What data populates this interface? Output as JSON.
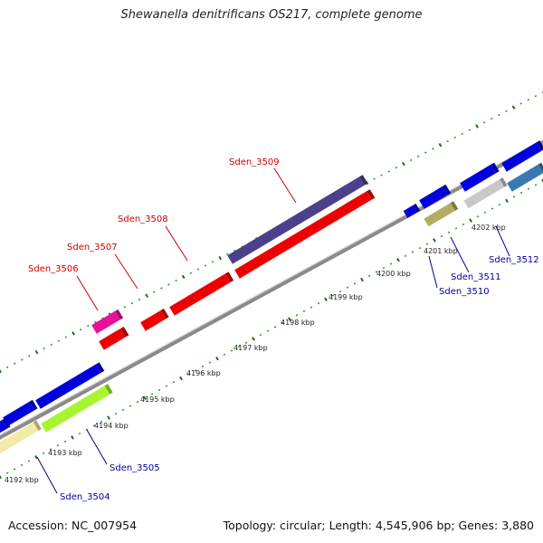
{
  "title": "Shewanella denitrificans OS217, complete genome",
  "footer": {
    "accession": "Accession: NC_007954",
    "summary": "Topology: circular; Length: 4,545,906 bp; Genes: 3,880"
  },
  "colors": {
    "backbone": "#8a8a8a",
    "tick_dots": "#2f9a2f",
    "tick_major": "#1d6e1d",
    "red_label": "#cc0000",
    "blue_label": "#000099"
  },
  "scale_ticks": [
    "4192 kbp",
    "4193 kbp",
    "4194 kbp",
    "4195 kbp",
    "4196 kbp",
    "4197 kbp",
    "4198 kbp",
    "4199 kbp",
    "4200 kbp",
    "4201 kbp",
    "4202 kbp"
  ],
  "genes": [
    {
      "id": "g0a",
      "strand": "top",
      "color": "#0000dd",
      "label": ""
    },
    {
      "id": "g0b",
      "strand": "top",
      "color": "#0000dd",
      "label": ""
    },
    {
      "id": "g0c",
      "strand": "top",
      "color": "#0000dd",
      "label": ""
    },
    {
      "id": "g3504",
      "strand": "bottom",
      "color": "#f2eba8",
      "label": "Sden_3504"
    },
    {
      "id": "g3505",
      "strand": "bottom",
      "color": "#a6f530",
      "label": "Sden_3505"
    },
    {
      "id": "g3506",
      "strand": "out",
      "color": "#e8119a",
      "label": "Sden_3506"
    },
    {
      "id": "g3506b",
      "strand": "bottom",
      "color": "#ee0000",
      "label": ""
    },
    {
      "id": "g3507",
      "strand": "bottom",
      "color": "#ee0000",
      "label": "Sden_3507"
    },
    {
      "id": "g3508",
      "strand": "bottom",
      "color": "#ee0000",
      "label": "Sden_3508"
    },
    {
      "id": "g3508b",
      "strand": "bottom",
      "color": "#ee0000",
      "label": ""
    },
    {
      "id": "g3509",
      "strand": "top",
      "color": "#4c3f8c",
      "label": "Sden_3509"
    },
    {
      "id": "gs1",
      "strand": "bottom",
      "color": "#0000dd",
      "label": ""
    },
    {
      "id": "g3510",
      "strand": "top",
      "color": "#0000dd",
      "label": "Sden_3510"
    },
    {
      "id": "g3511",
      "strand": "bottom",
      "color": "#b5ab63",
      "label": "Sden_3511"
    },
    {
      "id": "gs2",
      "strand": "top",
      "color": "#0000dd",
      "label": ""
    },
    {
      "id": "g3512",
      "strand": "bottom",
      "color": "#c8c8cc",
      "label": "Sden_3512"
    },
    {
      "id": "gs3",
      "strand": "top",
      "color": "#0000dd",
      "label": ""
    },
    {
      "id": "gs4",
      "strand": "bottom",
      "color": "#3a79b0",
      "label": ""
    }
  ]
}
